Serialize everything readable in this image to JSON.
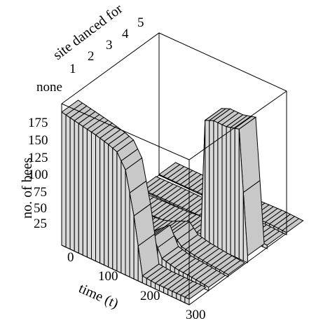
{
  "chart_data": {
    "type": "area",
    "variant": "3d-surface",
    "title": "",
    "axes": {
      "time": {
        "label": "time (t)",
        "ticks": [
          "0",
          "100",
          "200",
          "300"
        ],
        "range": [
          0,
          300
        ]
      },
      "site": {
        "label": "site danced for",
        "ticks": [
          "none",
          "1",
          "2",
          "3",
          "4",
          "5"
        ]
      },
      "bees": {
        "label": "no. of bees",
        "ticks": [
          "25",
          "50",
          "75",
          "100",
          "125",
          "150",
          "175"
        ],
        "range": [
          0,
          200
        ]
      }
    },
    "series": [
      {
        "site": "none",
        "x": [
          0,
          40,
          80,
          110,
          130,
          150,
          170,
          190,
          220,
          260,
          300
        ],
        "y": [
          190,
          185,
          180,
          175,
          170,
          150,
          90,
          10,
          8,
          8,
          8
        ]
      },
      {
        "site": "1",
        "x": [
          0,
          30,
          60,
          90,
          110,
          130,
          150,
          170,
          190,
          220,
          260,
          300
        ],
        "y": [
          5,
          8,
          10,
          12,
          15,
          20,
          30,
          40,
          15,
          10,
          8,
          5
        ]
      },
      {
        "site": "2",
        "x": [
          0,
          30,
          60,
          90,
          110,
          130,
          150,
          170,
          190,
          220,
          260,
          300
        ],
        "y": [
          3,
          5,
          6,
          8,
          10,
          14,
          20,
          25,
          12,
          8,
          5,
          3
        ]
      },
      {
        "site": "3",
        "x": [
          0,
          40,
          80,
          120,
          160,
          190,
          200,
          220,
          250,
          280,
          300
        ],
        "y": [
          2,
          3,
          4,
          5,
          8,
          10,
          175,
          180,
          180,
          185,
          10
        ]
      },
      {
        "site": "4",
        "x": [
          0,
          60,
          120,
          180,
          220,
          260,
          300
        ],
        "y": [
          1,
          2,
          2,
          3,
          4,
          6,
          5
        ]
      },
      {
        "site": "5",
        "x": [
          0,
          60,
          120,
          180,
          220,
          260,
          300
        ],
        "y": [
          1,
          1,
          2,
          2,
          3,
          4,
          3
        ]
      }
    ],
    "grid": false,
    "legend": "none",
    "colors": {
      "surface_top": "#c8c8c8",
      "surface_front": "#d9d9d9",
      "lines": "#000000"
    }
  }
}
